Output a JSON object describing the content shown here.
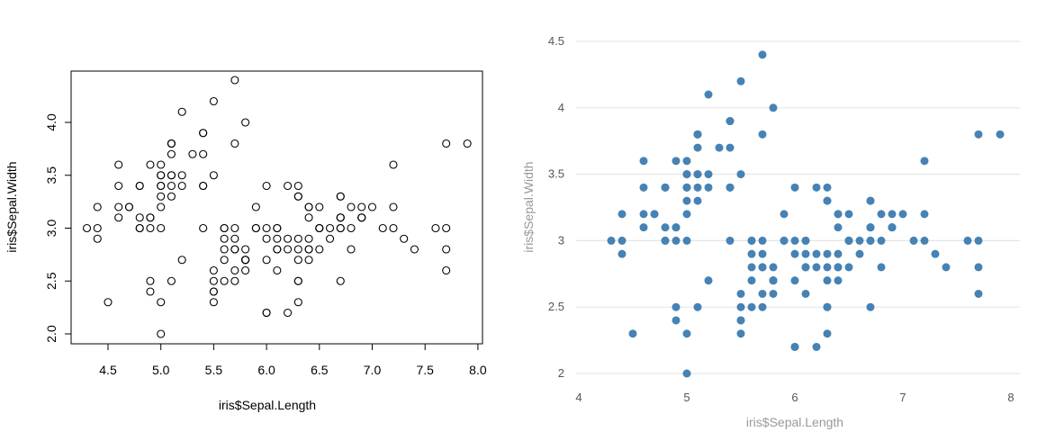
{
  "chart_data": [
    {
      "type": "scatter",
      "style": "base-graphics",
      "marker": "open-circle",
      "color": "#000000",
      "xlabel": "iris$Sepal.Length",
      "ylabel": "iris$Sepal.Width",
      "xticks": [
        "4.5",
        "5.0",
        "5.5",
        "6.0",
        "6.5",
        "7.0",
        "7.5",
        "8.0"
      ],
      "yticks": [
        "2.0",
        "2.5",
        "3.0",
        "3.5",
        "4.0"
      ],
      "grid": false
    },
    {
      "type": "scatter",
      "style": "plotly",
      "marker": "filled-circle",
      "color": "#4682b4",
      "xlabel": "iris$Sepal.Length",
      "ylabel": "iris$Sepal.Width",
      "xticks": [
        "4",
        "5",
        "6",
        "7",
        "8"
      ],
      "yticks": [
        "2",
        "2.5",
        "3",
        "3.5",
        "4",
        "4.5"
      ],
      "grid": true
    }
  ],
  "points": {
    "x": [
      5.1,
      4.9,
      4.7,
      4.6,
      5.0,
      5.4,
      4.6,
      5.0,
      4.4,
      4.9,
      5.4,
      4.8,
      4.8,
      4.3,
      5.8,
      5.7,
      5.4,
      5.1,
      5.7,
      5.1,
      5.4,
      5.1,
      4.6,
      5.1,
      4.8,
      5.0,
      5.0,
      5.2,
      5.2,
      4.7,
      4.8,
      5.4,
      5.2,
      5.5,
      4.9,
      5.0,
      5.5,
      4.9,
      4.4,
      5.1,
      5.0,
      4.5,
      4.4,
      5.0,
      5.1,
      4.8,
      5.1,
      4.6,
      5.3,
      5.0,
      7.0,
      6.4,
      6.9,
      5.5,
      6.5,
      5.7,
      6.3,
      4.9,
      6.6,
      5.2,
      5.0,
      5.9,
      6.0,
      6.1,
      5.6,
      6.7,
      5.6,
      5.8,
      6.2,
      5.6,
      5.9,
      6.1,
      6.3,
      6.1,
      6.4,
      6.6,
      6.8,
      6.7,
      6.0,
      5.7,
      5.5,
      5.5,
      5.8,
      6.0,
      5.4,
      6.0,
      6.7,
      6.3,
      5.6,
      5.5,
      5.5,
      6.1,
      5.8,
      5.0,
      5.6,
      5.7,
      5.7,
      6.2,
      5.1,
      5.7,
      6.3,
      5.8,
      7.1,
      6.3,
      6.5,
      7.6,
      4.9,
      7.3,
      6.7,
      7.2,
      6.5,
      6.4,
      6.8,
      5.7,
      5.8,
      6.4,
      6.5,
      7.7,
      7.7,
      6.0,
      6.9,
      5.6,
      7.7,
      6.3,
      6.7,
      7.2,
      6.2,
      6.1,
      6.4,
      7.2,
      7.4,
      7.9,
      6.4,
      6.3,
      6.1,
      7.7,
      6.3,
      6.4,
      6.0,
      6.9,
      6.7,
      6.9,
      5.8,
      6.8,
      6.7,
      6.7,
      6.3,
      6.5,
      6.2,
      5.9
    ],
    "y": [
      3.5,
      3.0,
      3.2,
      3.1,
      3.6,
      3.9,
      3.4,
      3.4,
      2.9,
      3.1,
      3.7,
      3.4,
      3.0,
      3.0,
      4.0,
      4.4,
      3.9,
      3.5,
      3.8,
      3.8,
      3.4,
      3.7,
      3.6,
      3.3,
      3.4,
      3.0,
      3.4,
      3.5,
      3.4,
      3.2,
      3.1,
      3.4,
      4.1,
      4.2,
      3.1,
      3.2,
      3.5,
      3.6,
      3.0,
      3.4,
      3.5,
      2.3,
      3.2,
      3.5,
      3.8,
      3.0,
      3.8,
      3.2,
      3.7,
      3.3,
      3.2,
      3.2,
      3.1,
      2.3,
      2.8,
      2.8,
      3.3,
      2.4,
      2.9,
      2.7,
      2.0,
      3.0,
      2.2,
      2.9,
      2.9,
      3.1,
      3.0,
      2.7,
      2.2,
      2.5,
      3.2,
      2.8,
      2.5,
      2.8,
      2.9,
      3.0,
      2.8,
      3.0,
      2.9,
      2.6,
      2.4,
      2.4,
      2.7,
      2.7,
      3.0,
      3.4,
      3.1,
      2.3,
      3.0,
      2.5,
      2.6,
      3.0,
      2.6,
      2.3,
      2.7,
      3.0,
      2.9,
      2.9,
      2.5,
      2.8,
      3.3,
      2.7,
      3.0,
      2.9,
      3.0,
      3.0,
      2.5,
      2.9,
      2.5,
      3.6,
      3.2,
      2.7,
      3.0,
      2.5,
      2.8,
      3.2,
      3.0,
      3.8,
      2.6,
      2.2,
      3.2,
      2.8,
      2.8,
      2.7,
      3.3,
      3.2,
      2.8,
      3.0,
      2.8,
      3.0,
      2.8,
      3.8,
      2.8,
      2.8,
      2.6,
      3.0,
      3.4,
      3.1,
      3.0,
      3.1,
      3.1,
      3.1,
      2.7,
      3.2,
      3.3,
      3.0,
      2.5,
      3.0,
      3.4,
      3.0
    ]
  }
}
